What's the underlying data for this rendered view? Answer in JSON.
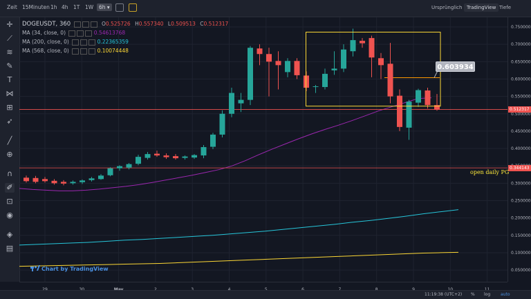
{
  "toolbar": {
    "intervals": [
      "Zeit",
      "15Minuten",
      "1h",
      "4h",
      "1T",
      "1W"
    ],
    "selected_interval": "6h",
    "right_items": [
      "Ursprünglich",
      "TradingView",
      "Tiefe"
    ],
    "active_right": "TradingView"
  },
  "legend": {
    "symbol": "DOGEUSDT, 360",
    "o_label": "O",
    "o_value": "0.525726",
    "h_label": "H",
    "h_value": "0.557340",
    "l_label": "L",
    "l_value": "0.509513",
    "c_label": "C",
    "c_value": "0.512317",
    "ma1_label": "MA (34, close, 0)",
    "ma1_value": "0.54613768",
    "ma2_label": "MA (200, close, 0)",
    "ma2_value": "0.22365359",
    "ma3_label": "MA (568, close, 0)",
    "ma3_value": "0.10074448"
  },
  "annotation": {
    "value": "0.603934",
    "open_text": "open daily PG"
  },
  "current_price_tag": "0.512317",
  "open_price_tag": "0.344143",
  "watermark": "Chart by TradingView",
  "bottom": {
    "time": "11:19:38 (UTC+2)",
    "percent": "%",
    "log": "log",
    "auto": "auto"
  },
  "colors": {
    "up": "#26a69a",
    "down": "#ef5350",
    "ma34": "#9c27b0",
    "ma200": "#26c6da",
    "ma568": "#fdd835",
    "box": "#fdd835",
    "bg": "#131722"
  },
  "icons": [
    "crosshair-icon",
    "trendline-icon",
    "pitchfork-icon",
    "brush-icon",
    "text-icon",
    "pattern-icon",
    "measure-icon",
    "rocket-icon",
    "ruler-icon",
    "zoom-in-icon",
    "magnet-icon",
    "lock-draw-icon",
    "lock-icon",
    "eye-icon",
    "layers-icon",
    "trash-icon"
  ],
  "chart_data": {
    "type": "candlestick",
    "symbol": "DOGEUSDT",
    "interval": "6h",
    "y_ticks": [
      0.75,
      0.7,
      0.65,
      0.6,
      0.55,
      0.5,
      0.45,
      0.4,
      0.35,
      0.3,
      0.25,
      0.2,
      0.15,
      0.1,
      0.05
    ],
    "ylim": [
      0.02,
      0.78
    ],
    "x_tick_labels": [
      "29",
      "30",
      "May",
      "2",
      "3",
      "4",
      "5",
      "6",
      "7",
      "8",
      "9",
      "10",
      "11"
    ],
    "candles": [
      {
        "o": 0.316,
        "h": 0.322,
        "l": 0.302,
        "c": 0.306
      },
      {
        "o": 0.315,
        "h": 0.321,
        "l": 0.3,
        "c": 0.304
      },
      {
        "o": 0.312,
        "h": 0.318,
        "l": 0.302,
        "c": 0.306
      },
      {
        "o": 0.307,
        "h": 0.312,
        "l": 0.296,
        "c": 0.3
      },
      {
        "o": 0.304,
        "h": 0.309,
        "l": 0.294,
        "c": 0.299
      },
      {
        "o": 0.3,
        "h": 0.308,
        "l": 0.296,
        "c": 0.304
      },
      {
        "o": 0.303,
        "h": 0.311,
        "l": 0.298,
        "c": 0.308
      },
      {
        "o": 0.309,
        "h": 0.318,
        "l": 0.305,
        "c": 0.314
      },
      {
        "o": 0.312,
        "h": 0.326,
        "l": 0.31,
        "c": 0.322
      },
      {
        "o": 0.323,
        "h": 0.346,
        "l": 0.32,
        "c": 0.343
      },
      {
        "o": 0.343,
        "h": 0.352,
        "l": 0.336,
        "c": 0.349
      },
      {
        "o": 0.345,
        "h": 0.358,
        "l": 0.34,
        "c": 0.355
      },
      {
        "o": 0.356,
        "h": 0.382,
        "l": 0.352,
        "c": 0.376
      },
      {
        "o": 0.373,
        "h": 0.39,
        "l": 0.368,
        "c": 0.384
      },
      {
        "o": 0.385,
        "h": 0.394,
        "l": 0.376,
        "c": 0.38
      },
      {
        "o": 0.38,
        "h": 0.386,
        "l": 0.37,
        "c": 0.375
      },
      {
        "o": 0.378,
        "h": 0.384,
        "l": 0.368,
        "c": 0.372
      },
      {
        "o": 0.373,
        "h": 0.38,
        "l": 0.368,
        "c": 0.377
      },
      {
        "o": 0.374,
        "h": 0.384,
        "l": 0.37,
        "c": 0.381
      },
      {
        "o": 0.38,
        "h": 0.41,
        "l": 0.372,
        "c": 0.404
      },
      {
        "o": 0.405,
        "h": 0.445,
        "l": 0.398,
        "c": 0.44
      },
      {
        "o": 0.44,
        "h": 0.51,
        "l": 0.432,
        "c": 0.5
      },
      {
        "o": 0.5,
        "h": 0.575,
        "l": 0.49,
        "c": 0.56
      },
      {
        "o": 0.53,
        "h": 0.56,
        "l": 0.505,
        "c": 0.54
      },
      {
        "o": 0.54,
        "h": 0.695,
        "l": 0.525,
        "c": 0.69
      },
      {
        "o": 0.688,
        "h": 0.7,
        "l": 0.64,
        "c": 0.672
      },
      {
        "o": 0.672,
        "h": 0.69,
        "l": 0.55,
        "c": 0.65
      },
      {
        "o": 0.652,
        "h": 0.68,
        "l": 0.57,
        "c": 0.64
      },
      {
        "o": 0.62,
        "h": 0.66,
        "l": 0.605,
        "c": 0.652
      },
      {
        "o": 0.652,
        "h": 0.66,
        "l": 0.6,
        "c": 0.611
      },
      {
        "o": 0.61,
        "h": 0.622,
        "l": 0.565,
        "c": 0.575
      },
      {
        "o": 0.577,
        "h": 0.583,
        "l": 0.56,
        "c": 0.579
      },
      {
        "o": 0.577,
        "h": 0.63,
        "l": 0.57,
        "c": 0.615
      },
      {
        "o": 0.625,
        "h": 0.68,
        "l": 0.612,
        "c": 0.63
      },
      {
        "o": 0.63,
        "h": 0.7,
        "l": 0.62,
        "c": 0.685
      },
      {
        "o": 0.68,
        "h": 0.745,
        "l": 0.665,
        "c": 0.712
      },
      {
        "o": 0.71,
        "h": 0.718,
        "l": 0.69,
        "c": 0.703
      },
      {
        "o": 0.718,
        "h": 0.725,
        "l": 0.605,
        "c": 0.662
      },
      {
        "o": 0.66,
        "h": 0.675,
        "l": 0.6,
        "c": 0.64
      },
      {
        "o": 0.644,
        "h": 0.704,
        "l": 0.53,
        "c": 0.55
      },
      {
        "o": 0.552,
        "h": 0.57,
        "l": 0.45,
        "c": 0.462
      },
      {
        "o": 0.46,
        "h": 0.54,
        "l": 0.425,
        "c": 0.535
      },
      {
        "o": 0.532,
        "h": 0.572,
        "l": 0.52,
        "c": 0.568
      },
      {
        "o": 0.567,
        "h": 0.575,
        "l": 0.515,
        "c": 0.525
      },
      {
        "o": 0.525,
        "h": 0.557,
        "l": 0.509,
        "c": 0.512
      }
    ],
    "ma34": [
      0.285,
      0.282,
      0.28,
      0.278,
      0.278,
      0.28,
      0.283,
      0.287,
      0.291,
      0.296,
      0.302,
      0.309,
      0.316,
      0.323,
      0.331,
      0.339,
      0.35,
      0.365,
      0.382,
      0.398,
      0.413,
      0.428,
      0.442,
      0.455,
      0.467,
      0.48,
      0.494,
      0.508,
      0.52,
      0.532,
      0.544,
      0.546
    ],
    "ma200": [
      0.122,
      0.124,
      0.126,
      0.128,
      0.13,
      0.133,
      0.136,
      0.138,
      0.141,
      0.144,
      0.147,
      0.15,
      0.154,
      0.158,
      0.162,
      0.167,
      0.172,
      0.177,
      0.182,
      0.188,
      0.193,
      0.199,
      0.205,
      0.212,
      0.218,
      0.224
    ],
    "ma568": [
      0.061,
      0.062,
      0.063,
      0.064,
      0.065,
      0.066,
      0.067,
      0.068,
      0.069,
      0.071,
      0.073,
      0.075,
      0.077,
      0.079,
      0.081,
      0.083,
      0.085,
      0.087,
      0.089,
      0.091,
      0.093,
      0.095,
      0.097,
      0.099,
      0.1,
      0.101
    ],
    "box": {
      "price_top": 0.735,
      "price_bottom": 0.522,
      "from_candle": 31,
      "to_candle_after": 44
    },
    "annotation_level": 0.603934,
    "horizontal_lines": [
      0.512317,
      0.344143
    ]
  }
}
